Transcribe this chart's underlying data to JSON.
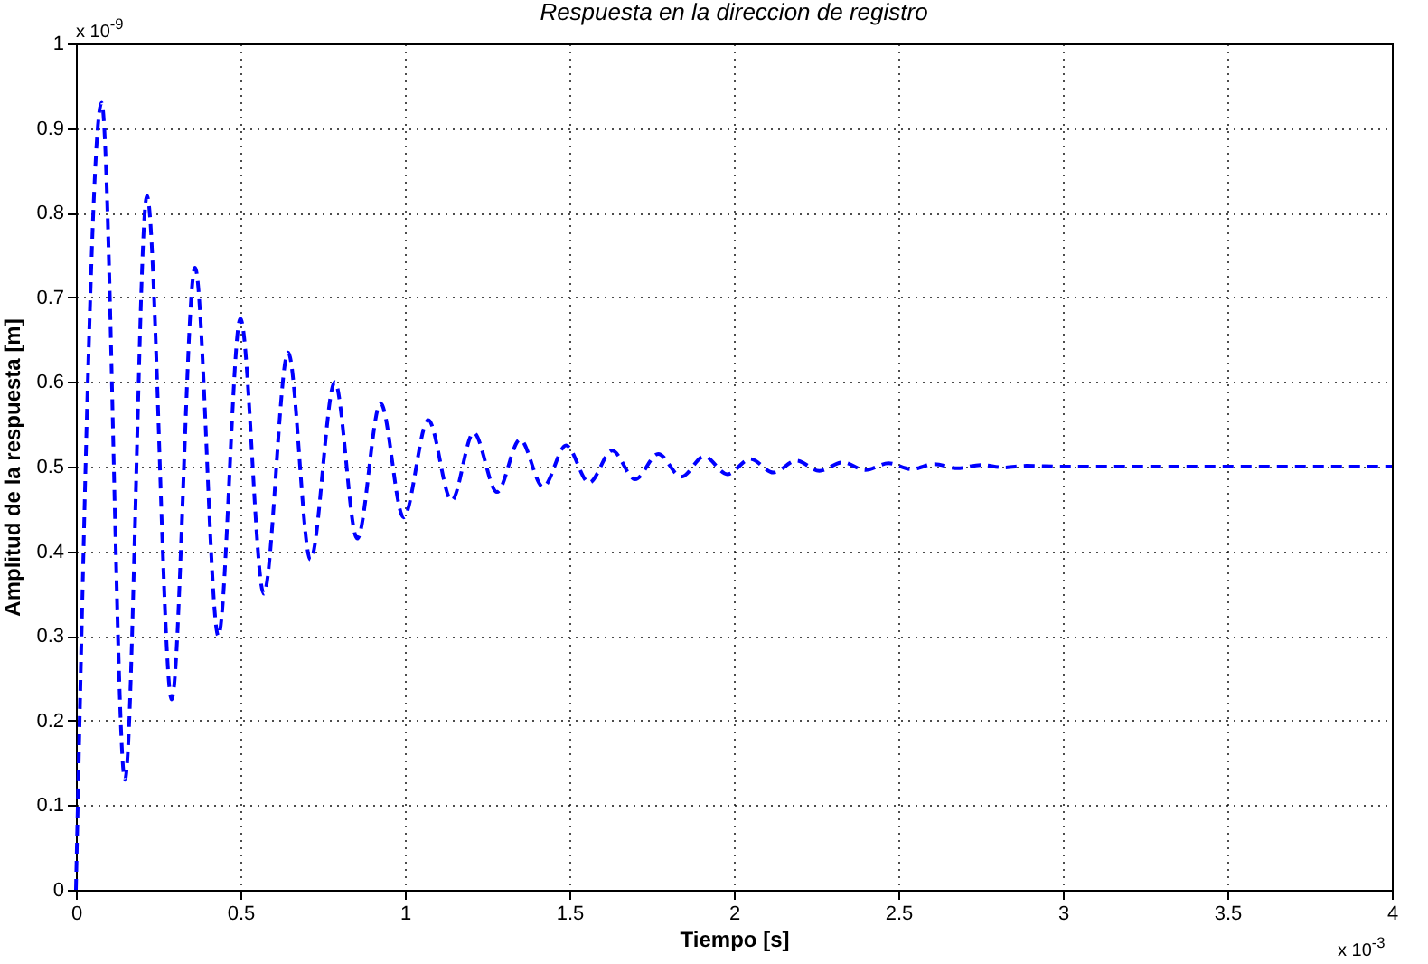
{
  "chart_data": {
    "type": "line",
    "title": "Respuesta en la direccion de registro",
    "xlabel": "Tiempo [s]",
    "ylabel": "Amplitud de la respuesta [m]",
    "annotations": [
      "x 10$^{-9}$",
      "x 10$^{-3}$"
    ],
    "x": [
      0,
      0.078,
      0.149,
      0.216,
      0.291,
      0.362,
      0.433,
      0.5,
      0.571,
      0.645,
      0.713,
      0.787,
      0.855,
      0.926,
      0.996,
      1.071,
      1.142,
      1.209,
      1.28,
      1.35,
      1.42,
      1.49,
      1.56,
      1.63,
      1.7,
      1.77,
      1.84,
      1.91,
      1.98,
      2.05,
      2.12,
      2.19,
      2.26,
      2.33,
      2.4,
      2.47,
      2.54,
      2.61,
      2.68,
      2.75,
      2.82,
      2.89,
      3.0,
      3.5,
      4.0
    ],
    "series": [
      {
        "color": "#0000ff",
        "values": [
          0,
          0.93,
          0.13,
          0.82,
          0.225,
          0.735,
          0.3,
          0.675,
          0.35,
          0.635,
          0.39,
          0.6,
          0.415,
          0.575,
          0.44,
          0.555,
          0.46,
          0.54,
          0.47,
          0.532,
          0.476,
          0.525,
          0.481,
          0.519,
          0.485,
          0.515,
          0.488,
          0.512,
          0.491,
          0.509,
          0.493,
          0.507,
          0.495,
          0.505,
          0.496,
          0.504,
          0.497,
          0.503,
          0.498,
          0.502,
          0.499,
          0.501,
          0.5,
          0.5,
          0.5
        ]
      }
    ],
    "xlim": [
      0,
      4
    ],
    "xticks": [
      0,
      0.5,
      1,
      1.5,
      2,
      2.5,
      3,
      3.5,
      4
    ],
    "ylim": [
      0,
      1
    ],
    "yticks": [
      0,
      0.1,
      0.2,
      0.3,
      0.4,
      0.5,
      0.6,
      0.7,
      0.8,
      0.9,
      1
    ],
    "grid": true,
    "line_style": "dashed",
    "marker": "none"
  }
}
